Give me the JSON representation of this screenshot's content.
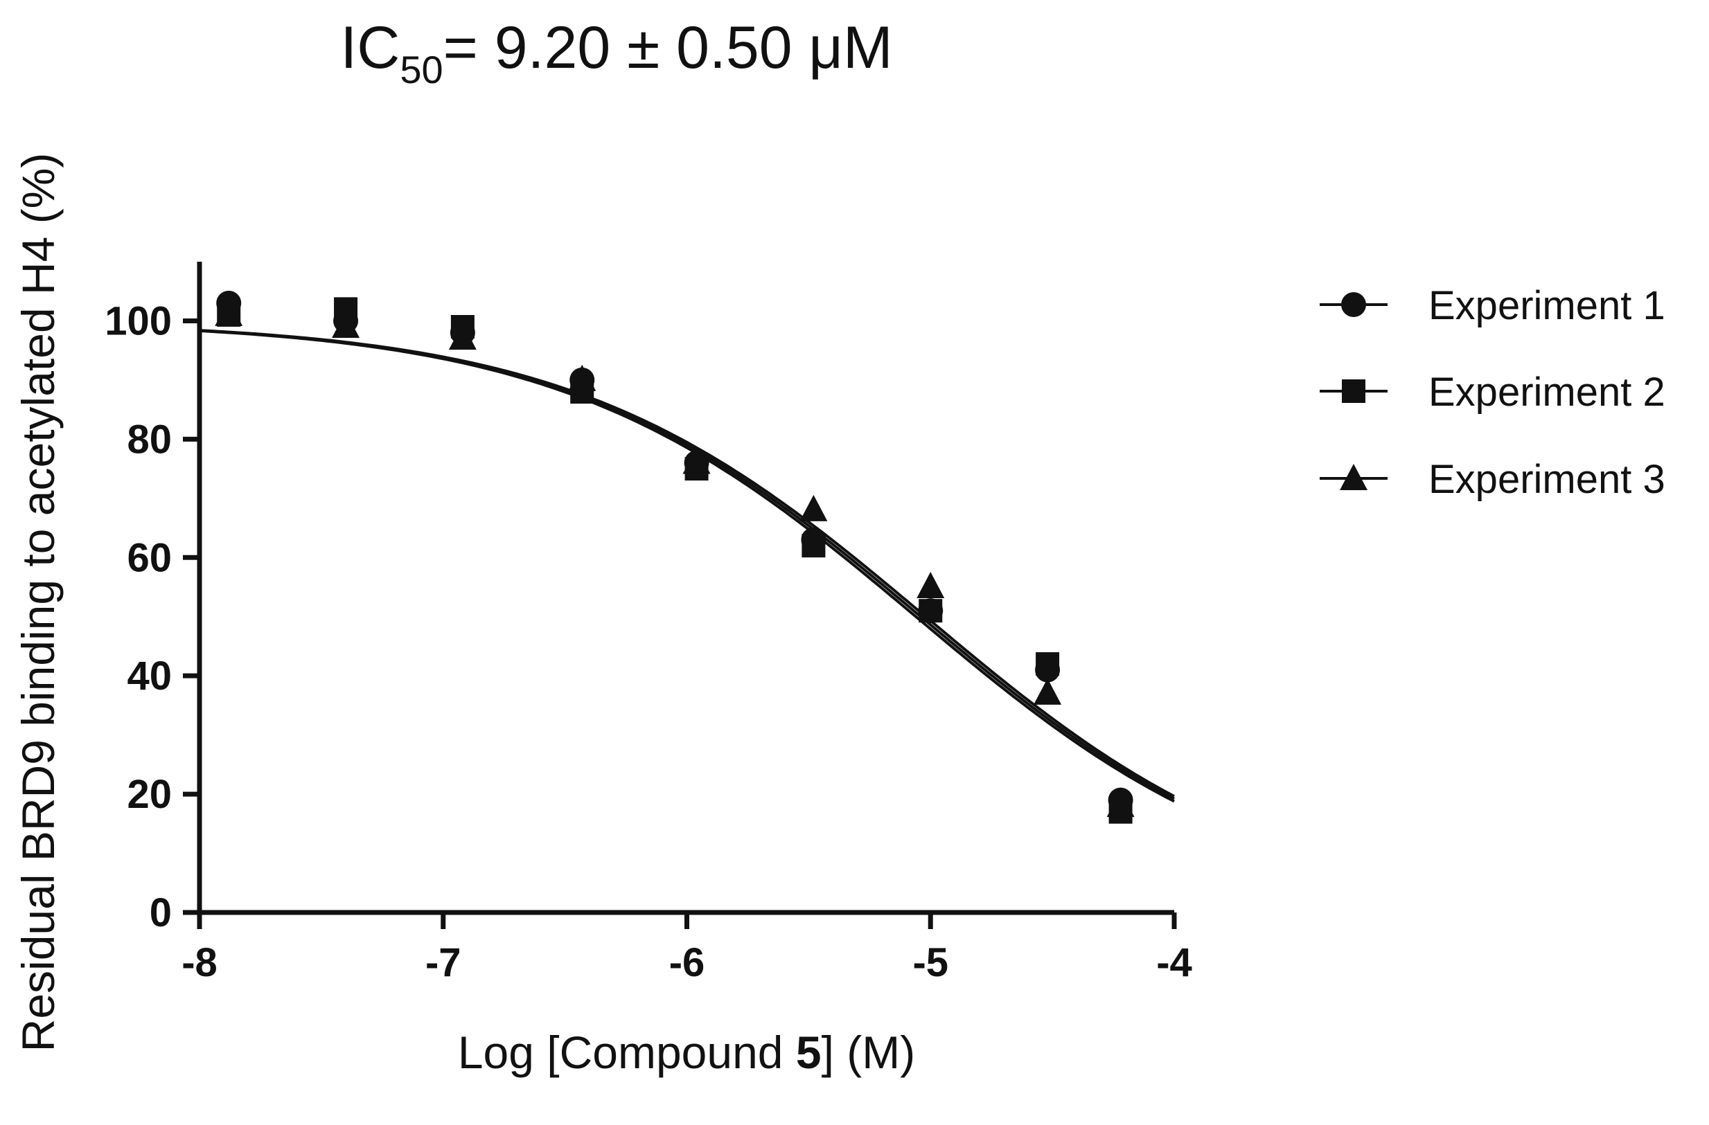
{
  "chart_data": {
    "type": "scatter",
    "title": {
      "prefix": "IC",
      "subscript": "50",
      "suffix": "= 9.20 ± 0.50 μM"
    },
    "xlabel": {
      "prefix": "Log [Compound ",
      "bold": "5",
      "suffix": "] (M)"
    },
    "ylabel": "Residual BRD9 binding to acetylated H4 (%)",
    "xlim": [
      -8,
      -4
    ],
    "ylim": [
      0,
      110
    ],
    "xticks": [
      -8,
      -7,
      -6,
      -5,
      -4
    ],
    "yticks": [
      0,
      20,
      40,
      60,
      80,
      100
    ],
    "xtick_labels": [
      "-8",
      "-7",
      "-6",
      "-5",
      "-4"
    ],
    "ytick_labels": [
      "0",
      "20",
      "40",
      "60",
      "80",
      "100"
    ],
    "grid": false,
    "legend_position": "right",
    "colors": {
      "marks": "#111111",
      "background": "#ffffff"
    },
    "series": [
      {
        "name": "Experiment 1",
        "marker": "circle",
        "x": [
          -7.88,
          -7.4,
          -6.92,
          -6.43,
          -5.96,
          -5.48,
          -5.0,
          -4.52,
          -4.22
        ],
        "y": [
          103,
          100,
          98,
          90,
          76,
          63,
          51,
          41,
          19
        ],
        "fit": {
          "top": 100,
          "bottom": 0,
          "log_ic50": -5.04,
          "hill": 0.6
        }
      },
      {
        "name": "Experiment 2",
        "marker": "square",
        "x": [
          -7.88,
          -7.4,
          -6.92,
          -6.43,
          -5.96,
          -5.48,
          -5.0,
          -4.52,
          -4.22
        ],
        "y": [
          101,
          102,
          99,
          88,
          75,
          62,
          51,
          42,
          17
        ],
        "fit": {
          "top": 100,
          "bottom": 0,
          "log_ic50": -5.06,
          "hill": 0.6
        }
      },
      {
        "name": "Experiment 3",
        "marker": "triangle",
        "x": [
          -7.88,
          -7.4,
          -6.92,
          -6.43,
          -5.96,
          -5.48,
          -5.0,
          -4.52,
          -4.22
        ],
        "y": [
          101,
          99,
          97,
          90,
          76,
          68,
          55,
          37,
          18
        ],
        "fit": {
          "top": 100,
          "bottom": 0,
          "log_ic50": -5.02,
          "hill": 0.6
        }
      }
    ]
  }
}
